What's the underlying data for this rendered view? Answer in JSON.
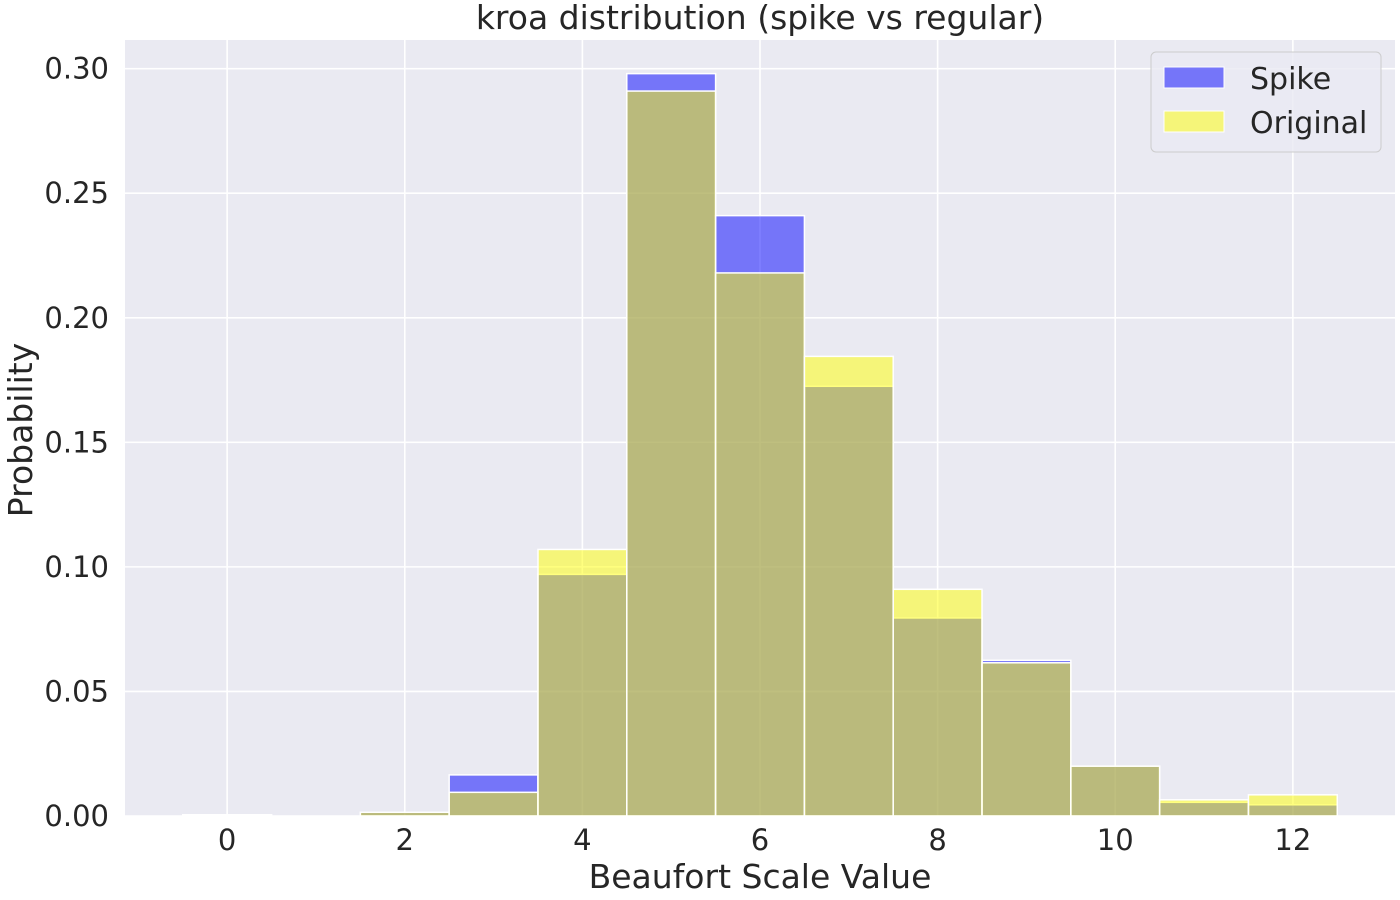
{
  "chart_data": {
    "type": "bar",
    "title": "kroa distribution (spike vs regular)",
    "xlabel": "Beaufort Scale Value",
    "ylabel": "Probability",
    "xlim": [
      -1.15,
      13.15
    ],
    "ylim": [
      0,
      0.3115
    ],
    "xticks": [
      0,
      2,
      4,
      6,
      8,
      10,
      12
    ],
    "xtick_labels": [
      "0",
      "2",
      "4",
      "6",
      "8",
      "10",
      "12"
    ],
    "yticks": [
      0.0,
      0.05,
      0.1,
      0.15,
      0.2,
      0.25,
      0.3
    ],
    "ytick_labels": [
      "0.00",
      "0.05",
      "0.10",
      "0.15",
      "0.20",
      "0.25",
      "0.30"
    ],
    "bins": [
      0,
      1,
      2,
      3,
      4,
      5,
      6,
      7,
      8,
      9,
      10,
      11,
      12
    ],
    "bin_width": 1,
    "grid": true,
    "legend_position": "top-right",
    "series": [
      {
        "name": "Spike",
        "color": "#0000ff",
        "opacity": 0.5,
        "values": [
          0.0005,
          0.0,
          0.0015,
          0.0165,
          0.097,
          0.298,
          0.241,
          0.1725,
          0.0795,
          0.0625,
          0.02,
          0.0055,
          0.0045
        ]
      },
      {
        "name": "Original",
        "color": "#ffff00",
        "opacity": 0.5,
        "values": [
          0.0005,
          0.0,
          0.0015,
          0.0095,
          0.107,
          0.291,
          0.218,
          0.1845,
          0.091,
          0.0615,
          0.02,
          0.0065,
          0.0085
        ]
      }
    ]
  }
}
